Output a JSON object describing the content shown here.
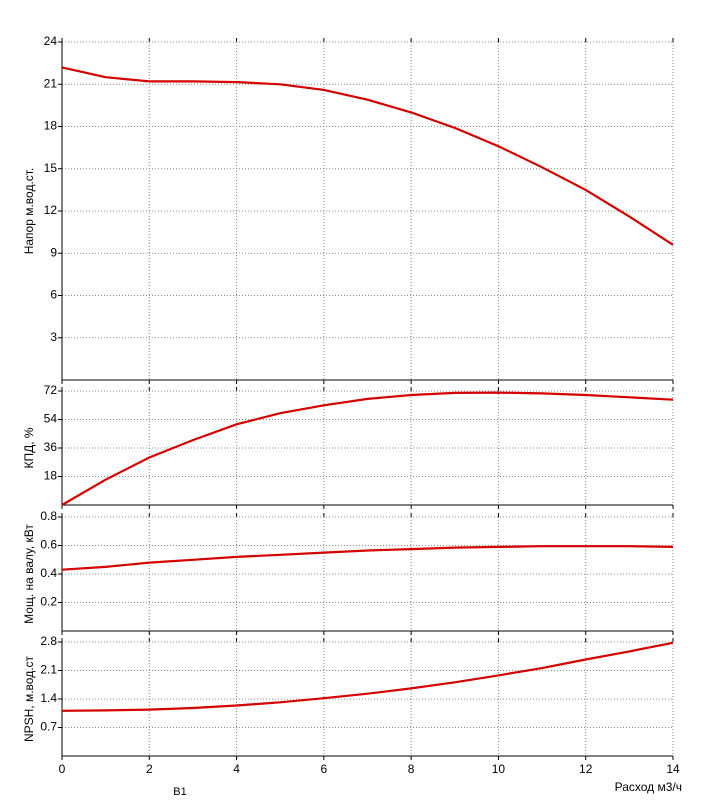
{
  "chart_data": [
    {
      "type": "line",
      "ylabel": "Напор м.вод.ст.",
      "color": "#d40000",
      "grid": true,
      "xlim": [
        0,
        14
      ],
      "xticks": [
        0,
        2,
        4,
        6,
        8,
        10,
        12,
        14
      ],
      "ylim": [
        0,
        24
      ],
      "yticks": [
        3,
        6,
        9,
        12,
        15,
        18,
        21,
        24
      ],
      "x": [
        0,
        1,
        2,
        3,
        4,
        5,
        6,
        7,
        8,
        9,
        10,
        11,
        12,
        13,
        14
      ],
      "values": [
        22.2,
        21.5,
        21.2,
        21.2,
        21.15,
        21.0,
        20.6,
        19.9,
        19.0,
        17.9,
        16.6,
        15.1,
        13.5,
        11.6,
        9.6
      ]
    },
    {
      "type": "line",
      "ylabel": "КПД, %",
      "color": "#d40000",
      "grid": true,
      "xlim": [
        0,
        14
      ],
      "xticks": [
        0,
        2,
        4,
        6,
        8,
        10,
        12,
        14
      ],
      "ylim": [
        0,
        72
      ],
      "yticks": [
        18,
        36,
        54,
        72
      ],
      "x": [
        0,
        1,
        2,
        3,
        4,
        5,
        6,
        7,
        8,
        9,
        10,
        11,
        12,
        13,
        14
      ],
      "values": [
        0,
        16,
        30,
        41,
        51,
        58,
        63,
        67,
        69.5,
        70.8,
        71,
        70.5,
        69.5,
        68,
        66.5
      ]
    },
    {
      "type": "line",
      "ylabel": "Мощ. на валу, кВт",
      "color": "#d40000",
      "grid": true,
      "xlim": [
        0,
        14
      ],
      "xticks": [
        0,
        2,
        4,
        6,
        8,
        10,
        12,
        14
      ],
      "ylim": [
        0,
        0.8
      ],
      "yticks": [
        0.2,
        0.4,
        0.6,
        0.8
      ],
      "x": [
        0,
        1,
        2,
        3,
        4,
        5,
        6,
        7,
        8,
        9,
        10,
        11,
        12,
        13,
        14
      ],
      "values": [
        0.43,
        0.45,
        0.48,
        0.5,
        0.52,
        0.535,
        0.55,
        0.565,
        0.575,
        0.585,
        0.59,
        0.595,
        0.595,
        0.595,
        0.59
      ]
    },
    {
      "type": "line",
      "ylabel": "NPSH, м.вод.ст",
      "xlabel": "Расход м3/ч",
      "annotation": "B1",
      "color": "#d40000",
      "grid": true,
      "xlim": [
        0,
        14
      ],
      "xticks": [
        0,
        2,
        4,
        6,
        8,
        10,
        12,
        14
      ],
      "ylim": [
        0,
        2.8
      ],
      "yticks": [
        0.7,
        1.4,
        2.1,
        2.8
      ],
      "x": [
        0,
        1,
        2,
        3,
        4,
        5,
        6,
        7,
        8,
        9,
        10,
        11,
        12,
        13,
        14
      ],
      "values": [
        1.11,
        1.12,
        1.14,
        1.18,
        1.24,
        1.32,
        1.42,
        1.53,
        1.66,
        1.81,
        1.98,
        2.16,
        2.37,
        2.57,
        2.78
      ]
    }
  ]
}
